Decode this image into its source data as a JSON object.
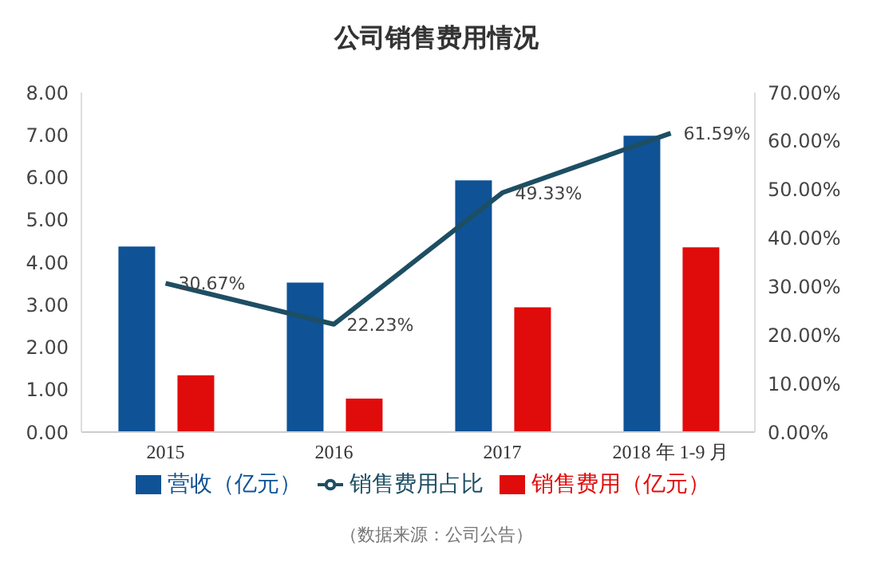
{
  "chart_data": {
    "type": "bar",
    "title": "公司销售费用情况",
    "categories": [
      "2015",
      "2016",
      "2017",
      "2018 年 1-9 月"
    ],
    "series": [
      {
        "name": "营收（亿元）",
        "color": "#0f5296",
        "values": [
          4.37,
          3.52,
          5.93,
          6.98
        ]
      },
      {
        "name": "销售费用（亿元）",
        "color": "#e00b0b",
        "values": [
          1.34,
          0.79,
          2.94,
          4.35
        ]
      },
      {
        "name": "销售费用占比",
        "type": "line",
        "axis": "y2",
        "color": "#1d4e63",
        "values": [
          30.67,
          22.23,
          49.33,
          61.59
        ],
        "value_labels": [
          "30.67%",
          "22.23%",
          "49.33%",
          "61.59%"
        ]
      }
    ],
    "ylim": [
      0,
      8
    ],
    "yticks": [
      {
        "value": 0,
        "label": "0.00"
      },
      {
        "value": 1,
        "label": "1.00"
      },
      {
        "value": 2,
        "label": "2.00"
      },
      {
        "value": 3,
        "label": "3.00"
      },
      {
        "value": 4,
        "label": "4.00"
      },
      {
        "value": 5,
        "label": "5.00"
      },
      {
        "value": 6,
        "label": "6.00"
      },
      {
        "value": 7,
        "label": "7.00"
      },
      {
        "value": 8,
        "label": "8.00"
      }
    ],
    "y2lim": [
      0,
      70
    ],
    "y2ticks": [
      {
        "value": 0,
        "label": "0.00%"
      },
      {
        "value": 10,
        "label": "10.00%"
      },
      {
        "value": 20,
        "label": "20.00%"
      },
      {
        "value": 30,
        "label": "30.00%"
      },
      {
        "value": 40,
        "label": "40.00%"
      },
      {
        "value": 50,
        "label": "50.00%"
      },
      {
        "value": 60,
        "label": "60.00%"
      },
      {
        "value": 70,
        "label": "70.00%"
      }
    ],
    "grid": false,
    "legend": "bottom",
    "annotations": [
      "（数据来源：公司公告）"
    ]
  }
}
